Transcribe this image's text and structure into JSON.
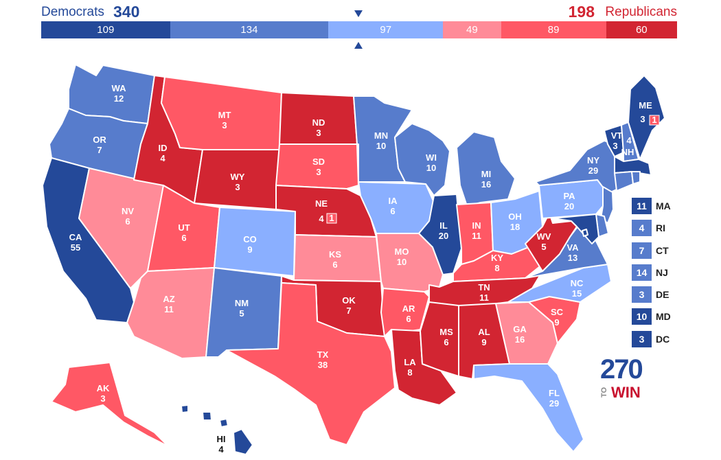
{
  "totals": {
    "dem_label": "Democrats",
    "dem_total": "340",
    "rep_total": "198",
    "rep_label": "Republicans"
  },
  "colors": {
    "safe_d": "#244999",
    "likely_d": "#577ccc",
    "lean_d": "#8aafff",
    "lean_r": "#ff8b98",
    "likely_r": "#ff5865",
    "safe_r": "#d22532"
  },
  "summary_bar": [
    {
      "label": "109",
      "value": 109,
      "color": "#244999"
    },
    {
      "label": "134",
      "value": 134,
      "color": "#577ccc"
    },
    {
      "label": "97",
      "value": 97,
      "color": "#8aafff"
    },
    {
      "label": "49",
      "value": 49,
      "color": "#ff8b98"
    },
    {
      "label": "89",
      "value": 89,
      "color": "#ff5865"
    },
    {
      "label": "60",
      "value": 60,
      "color": "#d22532"
    }
  ],
  "states": {
    "WA": {
      "abbr": "WA",
      "ev": "12"
    },
    "OR": {
      "abbr": "OR",
      "ev": "7"
    },
    "CA": {
      "abbr": "CA",
      "ev": "55"
    },
    "NV": {
      "abbr": "NV",
      "ev": "6"
    },
    "ID": {
      "abbr": "ID",
      "ev": "4"
    },
    "MT": {
      "abbr": "MT",
      "ev": "3"
    },
    "WY": {
      "abbr": "WY",
      "ev": "3"
    },
    "UT": {
      "abbr": "UT",
      "ev": "6"
    },
    "AZ": {
      "abbr": "AZ",
      "ev": "11"
    },
    "CO": {
      "abbr": "CO",
      "ev": "9"
    },
    "NM": {
      "abbr": "NM",
      "ev": "5"
    },
    "ND": {
      "abbr": "ND",
      "ev": "3"
    },
    "SD": {
      "abbr": "SD",
      "ev": "3"
    },
    "NE": {
      "abbr": "NE",
      "ev": "4",
      "district": "1"
    },
    "KS": {
      "abbr": "KS",
      "ev": "6"
    },
    "OK": {
      "abbr": "OK",
      "ev": "7"
    },
    "TX": {
      "abbr": "TX",
      "ev": "38"
    },
    "MN": {
      "abbr": "MN",
      "ev": "10"
    },
    "IA": {
      "abbr": "IA",
      "ev": "6"
    },
    "MO": {
      "abbr": "MO",
      "ev": "10"
    },
    "AR": {
      "abbr": "AR",
      "ev": "6"
    },
    "LA": {
      "abbr": "LA",
      "ev": "8"
    },
    "WI": {
      "abbr": "WI",
      "ev": "10"
    },
    "IL": {
      "abbr": "IL",
      "ev": "20"
    },
    "MI": {
      "abbr": "MI",
      "ev": "16"
    },
    "IN": {
      "abbr": "IN",
      "ev": "11"
    },
    "OH": {
      "abbr": "OH",
      "ev": "18"
    },
    "KY": {
      "abbr": "KY",
      "ev": "8"
    },
    "TN": {
      "abbr": "TN",
      "ev": "11"
    },
    "MS": {
      "abbr": "MS",
      "ev": "6"
    },
    "AL": {
      "abbr": "AL",
      "ev": "9"
    },
    "GA": {
      "abbr": "GA",
      "ev": "16"
    },
    "FL": {
      "abbr": "FL",
      "ev": "29"
    },
    "SC": {
      "abbr": "SC",
      "ev": "9"
    },
    "NC": {
      "abbr": "NC",
      "ev": "15"
    },
    "VA": {
      "abbr": "VA",
      "ev": "13"
    },
    "WV": {
      "abbr": "WV",
      "ev": "5"
    },
    "PA": {
      "abbr": "PA",
      "ev": "20"
    },
    "NY": {
      "abbr": "NY",
      "ev": "29"
    },
    "VT": {
      "abbr": "VT",
      "ev": "3"
    },
    "NH": {
      "abbr": "NH",
      "ev": "4"
    },
    "ME": {
      "abbr": "ME",
      "ev": "3",
      "district": "1"
    },
    "AK": {
      "abbr": "AK",
      "ev": "3"
    },
    "HI": {
      "abbr": "HI",
      "ev": "4"
    }
  },
  "small_states": [
    {
      "abbr": "MA",
      "ev": "11",
      "color": "#244999"
    },
    {
      "abbr": "RI",
      "ev": "4",
      "color": "#577ccc"
    },
    {
      "abbr": "CT",
      "ev": "7",
      "color": "#577ccc"
    },
    {
      "abbr": "NJ",
      "ev": "14",
      "color": "#577ccc"
    },
    {
      "abbr": "DE",
      "ev": "3",
      "color": "#577ccc"
    },
    {
      "abbr": "MD",
      "ev": "10",
      "color": "#244999"
    },
    {
      "abbr": "DC",
      "ev": "3",
      "color": "#244999"
    }
  ],
  "logo": {
    "number": "270",
    "to": "TO",
    "win": "WIN"
  }
}
